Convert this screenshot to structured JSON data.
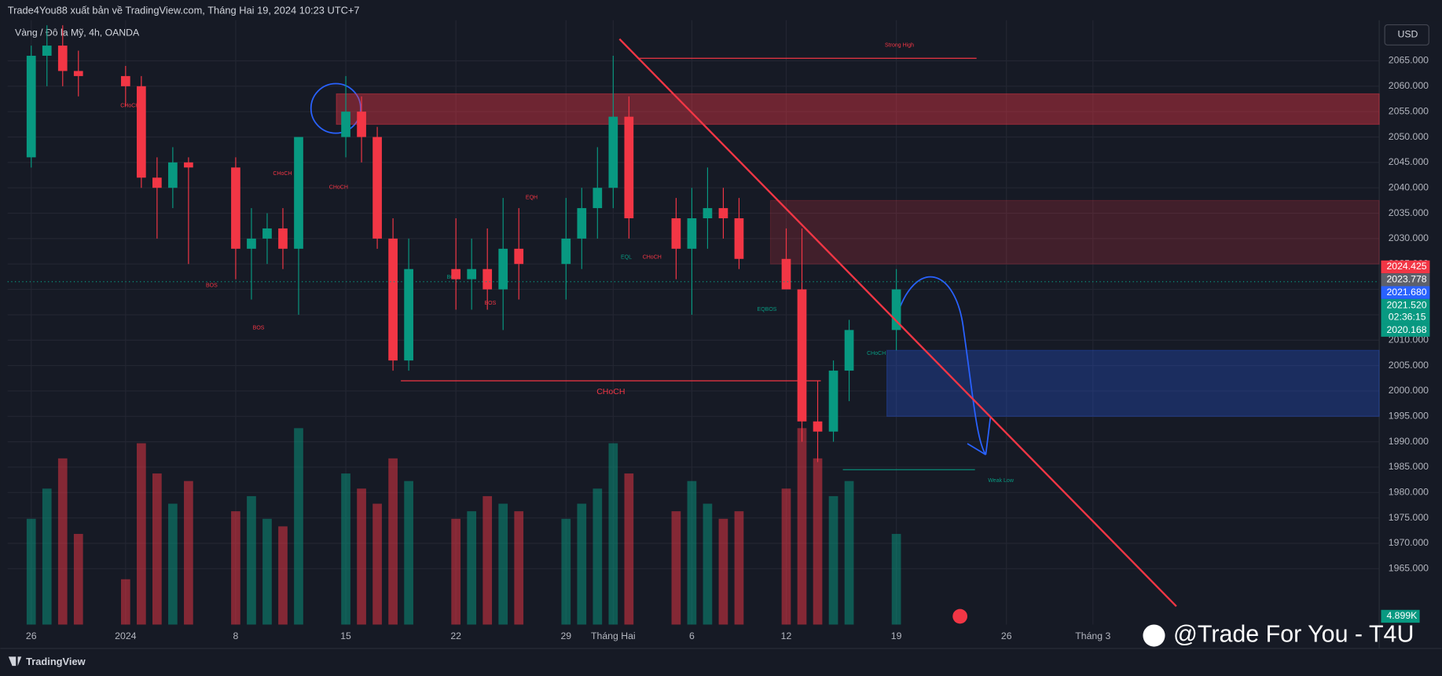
{
  "header": "Trade4You88 xuất bản về TradingView.com, Tháng Hai 19, 2024 10:23 UTC+7",
  "symbol": "Vàng / Đô la Mỹ, 4h, OANDA",
  "currency": "USD",
  "brand": "TradingView",
  "watermark": "@Trade For You - T4U",
  "chart_data": {
    "type": "candlestick",
    "up_color": "#089981",
    "down_color": "#f23645",
    "x": [
      0,
      1,
      2,
      3,
      6,
      7,
      8,
      9,
      10,
      13,
      14,
      15,
      16,
      17,
      20,
      21,
      22,
      23,
      24,
      27,
      28,
      29,
      30,
      31,
      34,
      35,
      36,
      37,
      38,
      41,
      42,
      43,
      44,
      45,
      48,
      49,
      50,
      51,
      52,
      55
    ],
    "open": [
      2046,
      2066,
      2068,
      2063,
      2062,
      2060,
      2042,
      2040,
      2045,
      2044,
      2028,
      2030,
      2032,
      2028,
      2050,
      2055,
      2050,
      2030,
      2006,
      2024,
      2022,
      2024,
      2020,
      2028,
      2025,
      2030,
      2036,
      2040,
      2054,
      2034,
      2028,
      2034,
      2036,
      2034,
      2026,
      2020,
      1994,
      1992,
      2004,
      2012
    ],
    "high": [
      2068,
      2072,
      2072,
      2067,
      2064,
      2062,
      2046,
      2048,
      2046,
      2046,
      2036,
      2035,
      2036,
      2050,
      2062,
      2058,
      2052,
      2034,
      2030,
      2034,
      2030,
      2032,
      2038,
      2036,
      2038,
      2040,
      2048,
      2066,
      2058,
      2038,
      2040,
      2044,
      2040,
      2038,
      2032,
      2032,
      2002,
      2006,
      2014,
      2024
    ],
    "low": [
      2044,
      2060,
      2060,
      2058,
      2056,
      2040,
      2030,
      2036,
      2025,
      2022,
      2018,
      2025,
      2024,
      2015,
      2046,
      2045,
      2028,
      2004,
      2004,
      2016,
      2016,
      2016,
      2012,
      2018,
      2018,
      2024,
      2030,
      2036,
      2030,
      2022,
      2015,
      2028,
      2030,
      2024,
      2020,
      1990,
      1986,
      1990,
      1998,
      2008
    ],
    "close": [
      2066,
      2068,
      2063,
      2062,
      2060,
      2042,
      2040,
      2045,
      2044,
      2028,
      2030,
      2032,
      2028,
      2050,
      2055,
      2050,
      2030,
      2006,
      2024,
      2022,
      2024,
      2020,
      2028,
      2025,
      2030,
      2036,
      2040,
      2054,
      2034,
      2028,
      2034,
      2036,
      2034,
      2026,
      2020,
      1994,
      1992,
      2004,
      2012,
      2020
    ],
    "volume": [
      14,
      18,
      22,
      12,
      6,
      24,
      20,
      16,
      19,
      15,
      17,
      14,
      13,
      26,
      20,
      18,
      16,
      22,
      19,
      14,
      15,
      17,
      16,
      15,
      14,
      16,
      18,
      24,
      20,
      15,
      19,
      16,
      14,
      15,
      18,
      26,
      22,
      17,
      19,
      12
    ],
    "vlim": [
      0,
      80
    ],
    "volume_label": "4.899K",
    "xlim": [
      -1.5,
      85.7
    ],
    "ylim": [
      1954,
      2073
    ],
    "xticks": [
      {
        "value": 0,
        "label": "26"
      },
      {
        "value": 6,
        "label": "2024"
      },
      {
        "value": 13,
        "label": "8"
      },
      {
        "value": 20,
        "label": "15"
      },
      {
        "value": 27,
        "label": "22"
      },
      {
        "value": 34,
        "label": "29"
      },
      {
        "value": 37,
        "label": "Tháng Hai"
      },
      {
        "value": 42,
        "label": "6"
      },
      {
        "value": 48,
        "label": "12"
      },
      {
        "value": 55,
        "label": "19"
      },
      {
        "value": 62,
        "label": "26"
      },
      {
        "value": 67.5,
        "label": "Tháng 3"
      }
    ],
    "yticks": [
      {
        "value": 1965,
        "label": "1965.000"
      },
      {
        "value": 1970,
        "label": "1970.000"
      },
      {
        "value": 1975,
        "label": "1975.000"
      },
      {
        "value": 1980,
        "label": "1980.000"
      },
      {
        "value": 1985,
        "label": "1985.000"
      },
      {
        "value": 1990,
        "label": "1990.000"
      },
      {
        "value": 1995,
        "label": "1995.000"
      },
      {
        "value": 2000,
        "label": "2000.000"
      },
      {
        "value": 2005,
        "label": "2005.000"
      },
      {
        "value": 2010,
        "label": "2010.000"
      },
      {
        "value": 2015,
        "label": "2015.000"
      },
      {
        "value": 2020,
        "label": "2020.000"
      },
      {
        "value": 2025,
        "label": "2025.000"
      },
      {
        "value": 2030,
        "label": "2030.000"
      },
      {
        "value": 2035,
        "label": "2035.000"
      },
      {
        "value": 2040,
        "label": "2040.000"
      },
      {
        "value": 2045,
        "label": "2045.000"
      },
      {
        "value": 2050,
        "label": "2050.000"
      },
      {
        "value": 2055,
        "label": "2055.000"
      },
      {
        "value": 2060,
        "label": "2060.000"
      },
      {
        "value": 2065,
        "label": "2065.000"
      }
    ],
    "price_labels": [
      {
        "value": 2024.425,
        "label": "2024.425",
        "color": "#f23645"
      },
      {
        "value": 2023.778,
        "label": "2023.778",
        "color": "#5d606b"
      },
      {
        "value": 2021.68,
        "label": "2021.680",
        "color": "#2962ff"
      },
      {
        "value": 2021.52,
        "label": "2021.520",
        "color": "#089981"
      },
      {
        "value": 2020.168,
        "label": "2020.168",
        "color": "#089981"
      }
    ],
    "countdown": "02:36:15",
    "zones": [
      {
        "top": 2058.5,
        "bottom": 2052.5,
        "start": 19.4,
        "color": "#f2364566"
      },
      {
        "top": 2037.5,
        "bottom": 2025,
        "start": 47,
        "color": "#f2364533"
      },
      {
        "top": 2008,
        "bottom": 1995,
        "start": 54.4,
        "color": "#2962ff44"
      }
    ],
    "trendline": {
      "x": [
        37.4,
        72.8
      ],
      "y": [
        2069.3,
        1957.6
      ],
      "color": "#f23645"
    },
    "levels": [
      {
        "text": "Strong High",
        "value": 2065.5,
        "from": 38.6,
        "to": 60.1,
        "color": "#f23645"
      },
      {
        "text": "Weak Low",
        "value": 1984.5,
        "from": 51.6,
        "to": 60
      },
      {
        "text": "CHoCH",
        "value": 2002,
        "from": 23.5,
        "to": 50.2,
        "color": "#f23645"
      }
    ],
    "annotations": [
      "CHoCH",
      "BOS",
      "CHoCH",
      "BOS",
      "CHoCH",
      "BOS",
      "EQH",
      "BOS",
      "EQL",
      "CHoCH",
      "EQBOS",
      "CHoCH"
    ]
  }
}
